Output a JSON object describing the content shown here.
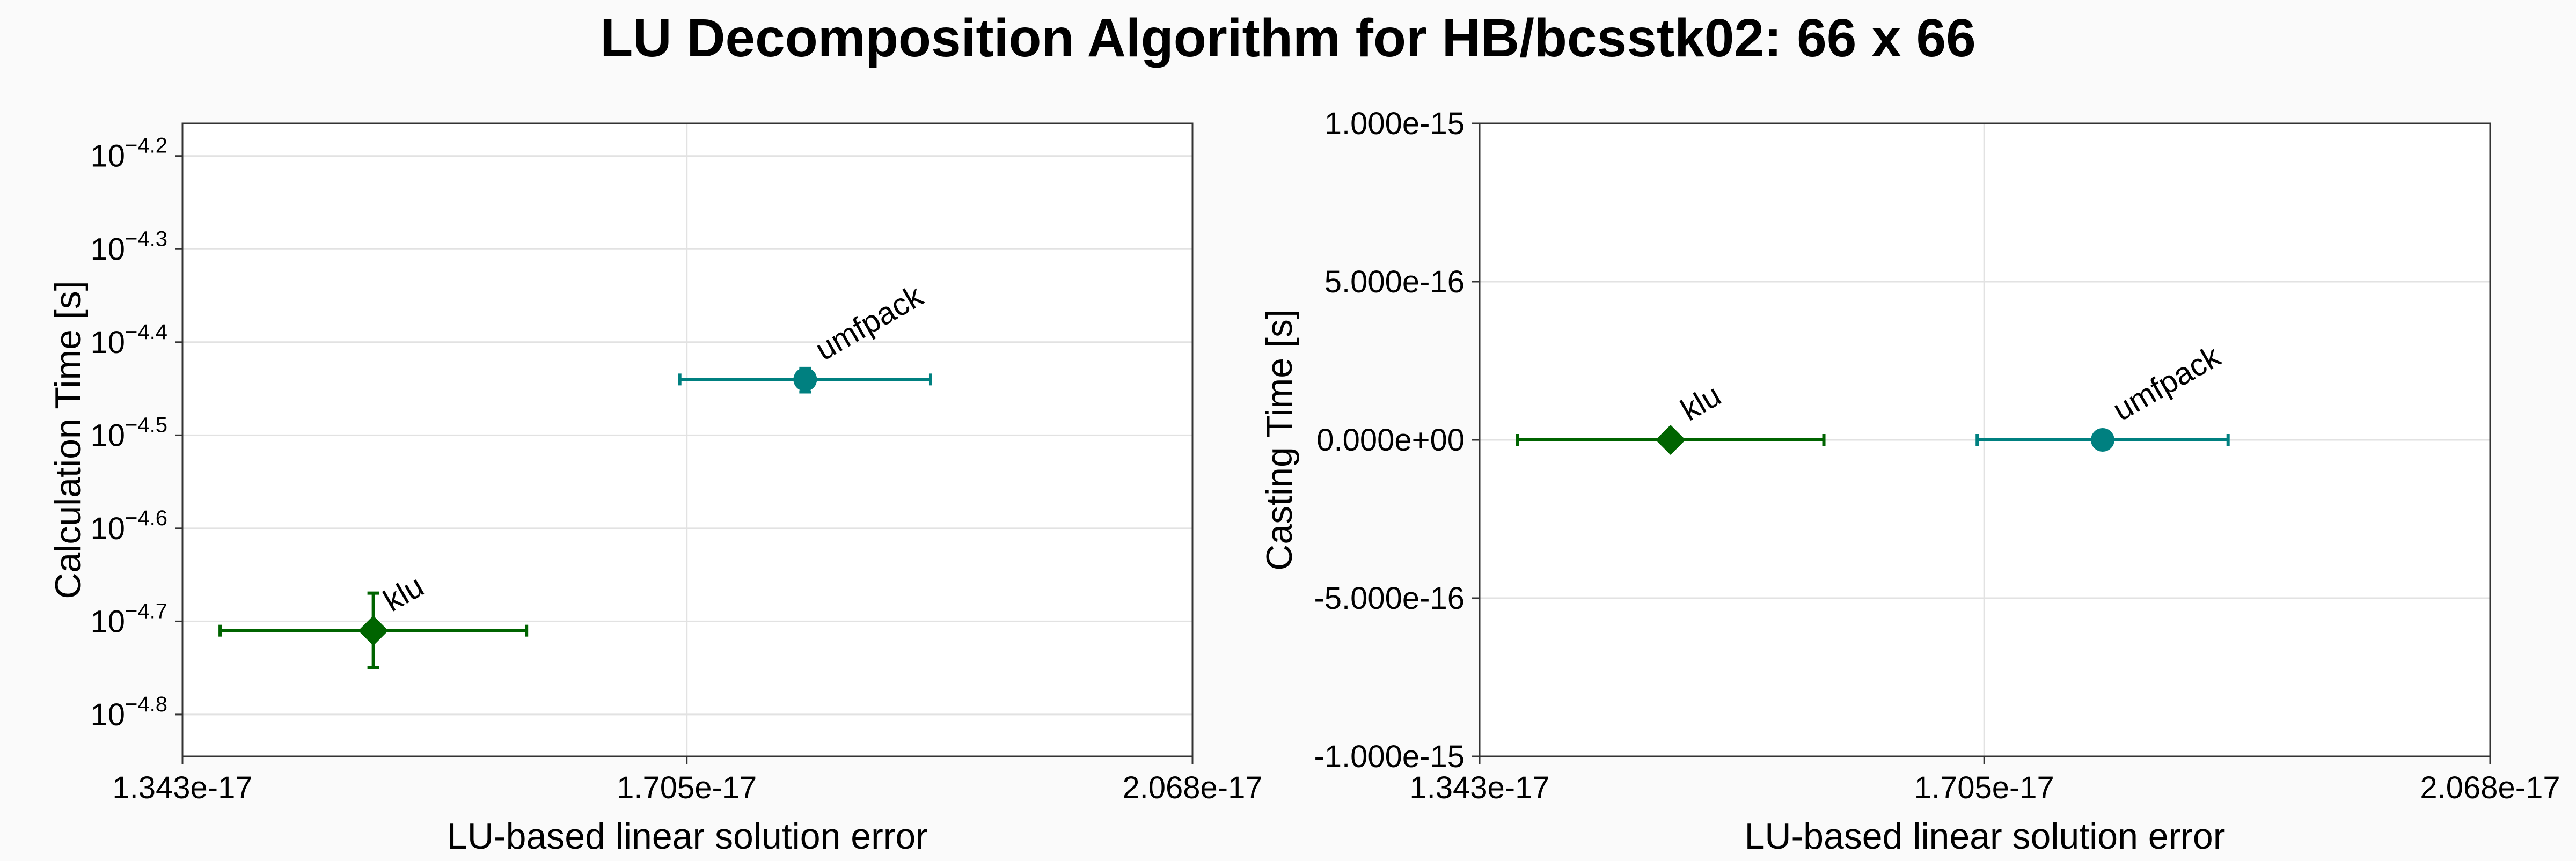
{
  "title": "LU Decomposition Algorithm for HB/bcsstk02: 66 x 66",
  "colors": {
    "klu": "#006400",
    "umfpack": "#008080",
    "frame": "#333333",
    "grid": "#e2e2e2",
    "background": "#fafafa"
  },
  "chart_data": [
    {
      "type": "scatter",
      "xlabel": "LU-based linear solution error",
      "ylabel": "Calculation Time [s]",
      "xlim": [
        1.343e-17,
        2.068e-17
      ],
      "xticks": [
        1.343e-17,
        1.705e-17,
        2.068e-17
      ],
      "xtick_labels": [
        "1.343e-17",
        "1.705e-17",
        "2.068e-17"
      ],
      "yscale": "log",
      "ylim_log10": [
        -4.845,
        -4.165
      ],
      "yticks_log10": [
        -4.8,
        -4.7,
        -4.6,
        -4.5,
        -4.4,
        -4.3,
        -4.2
      ],
      "ytick_labels": [
        {
          "base": "10",
          "exp": "−4.8"
        },
        {
          "base": "10",
          "exp": "−4.7"
        },
        {
          "base": "10",
          "exp": "−4.6"
        },
        {
          "base": "10",
          "exp": "−4.5"
        },
        {
          "base": "10",
          "exp": "−4.4"
        },
        {
          "base": "10",
          "exp": "−4.3"
        },
        {
          "base": "10",
          "exp": "−4.2"
        }
      ],
      "grid": true,
      "series": [
        {
          "name": "klu",
          "marker": "diamond",
          "color": "#006400",
          "x": 1.48e-17,
          "x_err": 1.1e-18,
          "y": 1.95e-05,
          "y_low": 1.78e-05,
          "y_high": 2.14e-05
        },
        {
          "name": "umfpack",
          "marker": "circle",
          "color": "#008080",
          "x": 1.79e-17,
          "x_err": 9e-19,
          "y": 3.63e-05,
          "y_low": 3.52e-05,
          "y_high": 3.73e-05
        }
      ]
    },
    {
      "type": "scatter",
      "xlabel": "LU-based linear solution error",
      "ylabel": "Casting Time [s]",
      "xlim": [
        1.343e-17,
        2.068e-17
      ],
      "xticks": [
        1.343e-17,
        1.705e-17,
        2.068e-17
      ],
      "xtick_labels": [
        "1.343e-17",
        "1.705e-17",
        "2.068e-17"
      ],
      "yscale": "linear",
      "ylim": [
        -1e-15,
        1e-15
      ],
      "yticks": [
        -1e-15,
        -5e-16,
        0,
        5e-16,
        1e-15
      ],
      "ytick_labels": [
        "-1.000e-15",
        "-5.000e-16",
        "0.000e+00",
        "5.000e-16",
        "1.000e-15"
      ],
      "grid": true,
      "series": [
        {
          "name": "klu",
          "marker": "diamond",
          "color": "#006400",
          "x": 1.48e-17,
          "x_err": 1.1e-18,
          "y": 0
        },
        {
          "name": "umfpack",
          "marker": "circle",
          "color": "#008080",
          "x": 1.79e-17,
          "x_err": 9e-19,
          "y": 0
        }
      ]
    }
  ]
}
